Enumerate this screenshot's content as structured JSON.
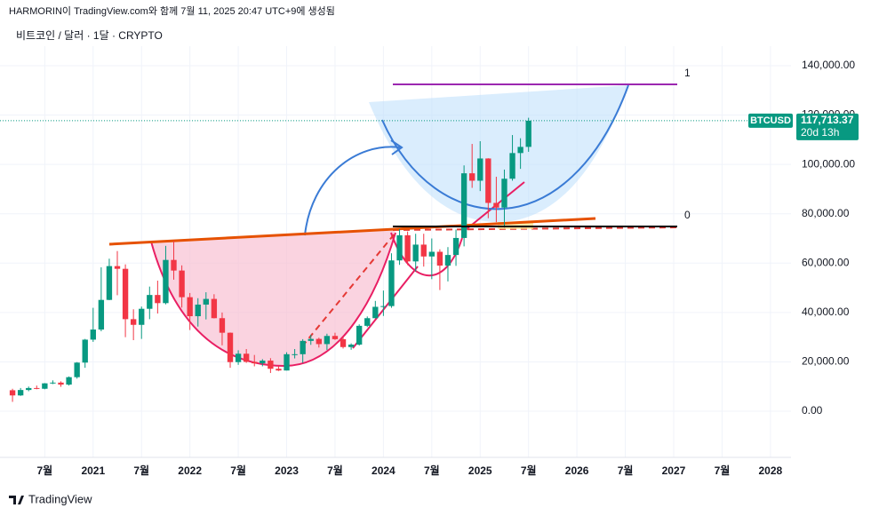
{
  "header": "HARMORIN이 TradingView.com와 함께 7월 11, 2025 20:47 UTC+9에 생성됨",
  "footer": "TradingView",
  "chart_data": {
    "type": "candlestick",
    "title": "비트코인 / 달러 · 1달 · CRYPTO",
    "symbol": "BTCUSD",
    "last_price": {
      "value": 117713.37,
      "label": "117,713.37"
    },
    "countdown": "20d 13h",
    "x": [
      "2020-03",
      "2020-04",
      "2020-05",
      "2020-06",
      "2020-07",
      "2020-08",
      "2020-09",
      "2020-10",
      "2020-11",
      "2020-12",
      "2021-01",
      "2021-02",
      "2021-03",
      "2021-04",
      "2021-05",
      "2021-06",
      "2021-07",
      "2021-08",
      "2021-09",
      "2021-10",
      "2021-11",
      "2021-12",
      "2022-01",
      "2022-02",
      "2022-03",
      "2022-04",
      "2022-05",
      "2022-06",
      "2022-07",
      "2022-08",
      "2022-09",
      "2022-10",
      "2022-11",
      "2022-12",
      "2023-01",
      "2023-02",
      "2023-03",
      "2023-04",
      "2023-05",
      "2023-06",
      "2023-07",
      "2023-08",
      "2023-09",
      "2023-10",
      "2023-11",
      "2023-12",
      "2024-01",
      "2024-02",
      "2024-03",
      "2024-04",
      "2024-05",
      "2024-06",
      "2024-07",
      "2024-08",
      "2024-09",
      "2024-10",
      "2024-11",
      "2024-12",
      "2025-01",
      "2025-02",
      "2025-03",
      "2025-04",
      "2025-05",
      "2025-06",
      "2025-07"
    ],
    "open": [
      8500,
      6400,
      8600,
      9400,
      9100,
      11300,
      11600,
      10800,
      13800,
      19700,
      29000,
      33100,
      45100,
      58800,
      57700,
      37300,
      35000,
      41500,
      47100,
      43800,
      61300,
      57000,
      46200,
      38500,
      43200,
      45500,
      37700,
      31800,
      19900,
      23300,
      20000,
      19400,
      20500,
      17200,
      16500,
      23100,
      23100,
      28500,
      29300,
      27200,
      30500,
      29200,
      26000,
      27000,
      34600,
      37700,
      42300,
      42600,
      61100,
      71300,
      60700,
      67500,
      62700,
      64600,
      59000,
      63300,
      70200,
      96400,
      93400,
      102400,
      84400,
      82500,
      94200,
      104600,
      107100
    ],
    "high": [
      9100,
      9400,
      10000,
      10400,
      11400,
      12500,
      12100,
      14100,
      19900,
      29300,
      41900,
      58300,
      61800,
      64900,
      59500,
      41300,
      42400,
      50500,
      52900,
      67000,
      69000,
      59100,
      47900,
      45800,
      48200,
      47400,
      40000,
      31900,
      24700,
      25200,
      22800,
      21100,
      21500,
      18400,
      23900,
      25200,
      29200,
      31000,
      29800,
      31400,
      31800,
      30200,
      27500,
      35200,
      38400,
      44700,
      48900,
      64000,
      73800,
      72800,
      71900,
      71900,
      70000,
      65600,
      66500,
      73600,
      99600,
      108300,
      109400,
      102500,
      95000,
      97900,
      111900,
      110600,
      118900
    ],
    "low": [
      3800,
      6200,
      8100,
      8900,
      8900,
      11000,
      9900,
      10400,
      13200,
      17600,
      28100,
      32400,
      45000,
      47000,
      30000,
      28800,
      29300,
      37300,
      39600,
      43300,
      53300,
      42000,
      32900,
      34300,
      37200,
      37600,
      26700,
      17600,
      18800,
      19600,
      18200,
      18200,
      15500,
      16300,
      16500,
      21400,
      19600,
      26900,
      25800,
      24800,
      28900,
      25400,
      24900,
      26600,
      34100,
      37600,
      38600,
      41900,
      59300,
      59200,
      56600,
      58600,
      53500,
      49100,
      52600,
      58900,
      66800,
      90500,
      89200,
      78200,
      76600,
      74400,
      93400,
      98200,
      105100
    ],
    "close": [
      6400,
      8600,
      9400,
      9100,
      11300,
      11600,
      10800,
      13800,
      19700,
      29000,
      33100,
      45100,
      58800,
      57700,
      37300,
      35000,
      41500,
      47100,
      43800,
      61300,
      57000,
      46200,
      38500,
      43200,
      45500,
      37700,
      31800,
      19900,
      23300,
      20000,
      19400,
      20500,
      17200,
      16500,
      23100,
      23100,
      28500,
      29300,
      27200,
      30500,
      29200,
      26000,
      27000,
      34600,
      37700,
      42300,
      42600,
      61100,
      71300,
      60700,
      67500,
      62700,
      64600,
      59000,
      63300,
      70200,
      96400,
      93400,
      102400,
      84400,
      82500,
      94200,
      104600,
      107100,
      117713.37
    ],
    "colors": {
      "up": "#089981",
      "down": "#f23645"
    },
    "xlim": [
      "2020-02",
      "2028-03"
    ],
    "xticks": [
      {
        "value": "2020-07",
        "label": "7월"
      },
      {
        "value": "2021-01",
        "label": "2021"
      },
      {
        "value": "2021-07",
        "label": "7월"
      },
      {
        "value": "2022-01",
        "label": "2022"
      },
      {
        "value": "2022-07",
        "label": "7월"
      },
      {
        "value": "2023-01",
        "label": "2023"
      },
      {
        "value": "2023-07",
        "label": "7월"
      },
      {
        "value": "2024-01",
        "label": "2024"
      },
      {
        "value": "2024-07",
        "label": "7월"
      },
      {
        "value": "2025-01",
        "label": "2025"
      },
      {
        "value": "2025-07",
        "label": "7월"
      },
      {
        "value": "2026-01",
        "label": "2026"
      },
      {
        "value": "2026-07",
        "label": "7월"
      },
      {
        "value": "2027-01",
        "label": "2027"
      },
      {
        "value": "2027-07",
        "label": "7월"
      },
      {
        "value": "2028-01",
        "label": "2028"
      }
    ],
    "ylim": [
      -18700,
      147900
    ],
    "yticks": [
      {
        "value": 0,
        "label": "0.00"
      },
      {
        "value": 20000,
        "label": "20,000.00"
      },
      {
        "value": 40000,
        "label": "40,000.00"
      },
      {
        "value": 60000,
        "label": "60,000.00"
      },
      {
        "value": 80000,
        "label": "80,000.00"
      },
      {
        "value": 100000,
        "label": "100,000.00"
      },
      {
        "value": 120000,
        "label": "120,000.00"
      },
      {
        "value": 140000,
        "label": "140,000.00"
      }
    ],
    "fib_levels": [
      {
        "value": 132440,
        "label": "1",
        "color": "#9c27b0"
      },
      {
        "value": 74860,
        "label": "0",
        "color": "#000000"
      }
    ],
    "grid": true
  }
}
